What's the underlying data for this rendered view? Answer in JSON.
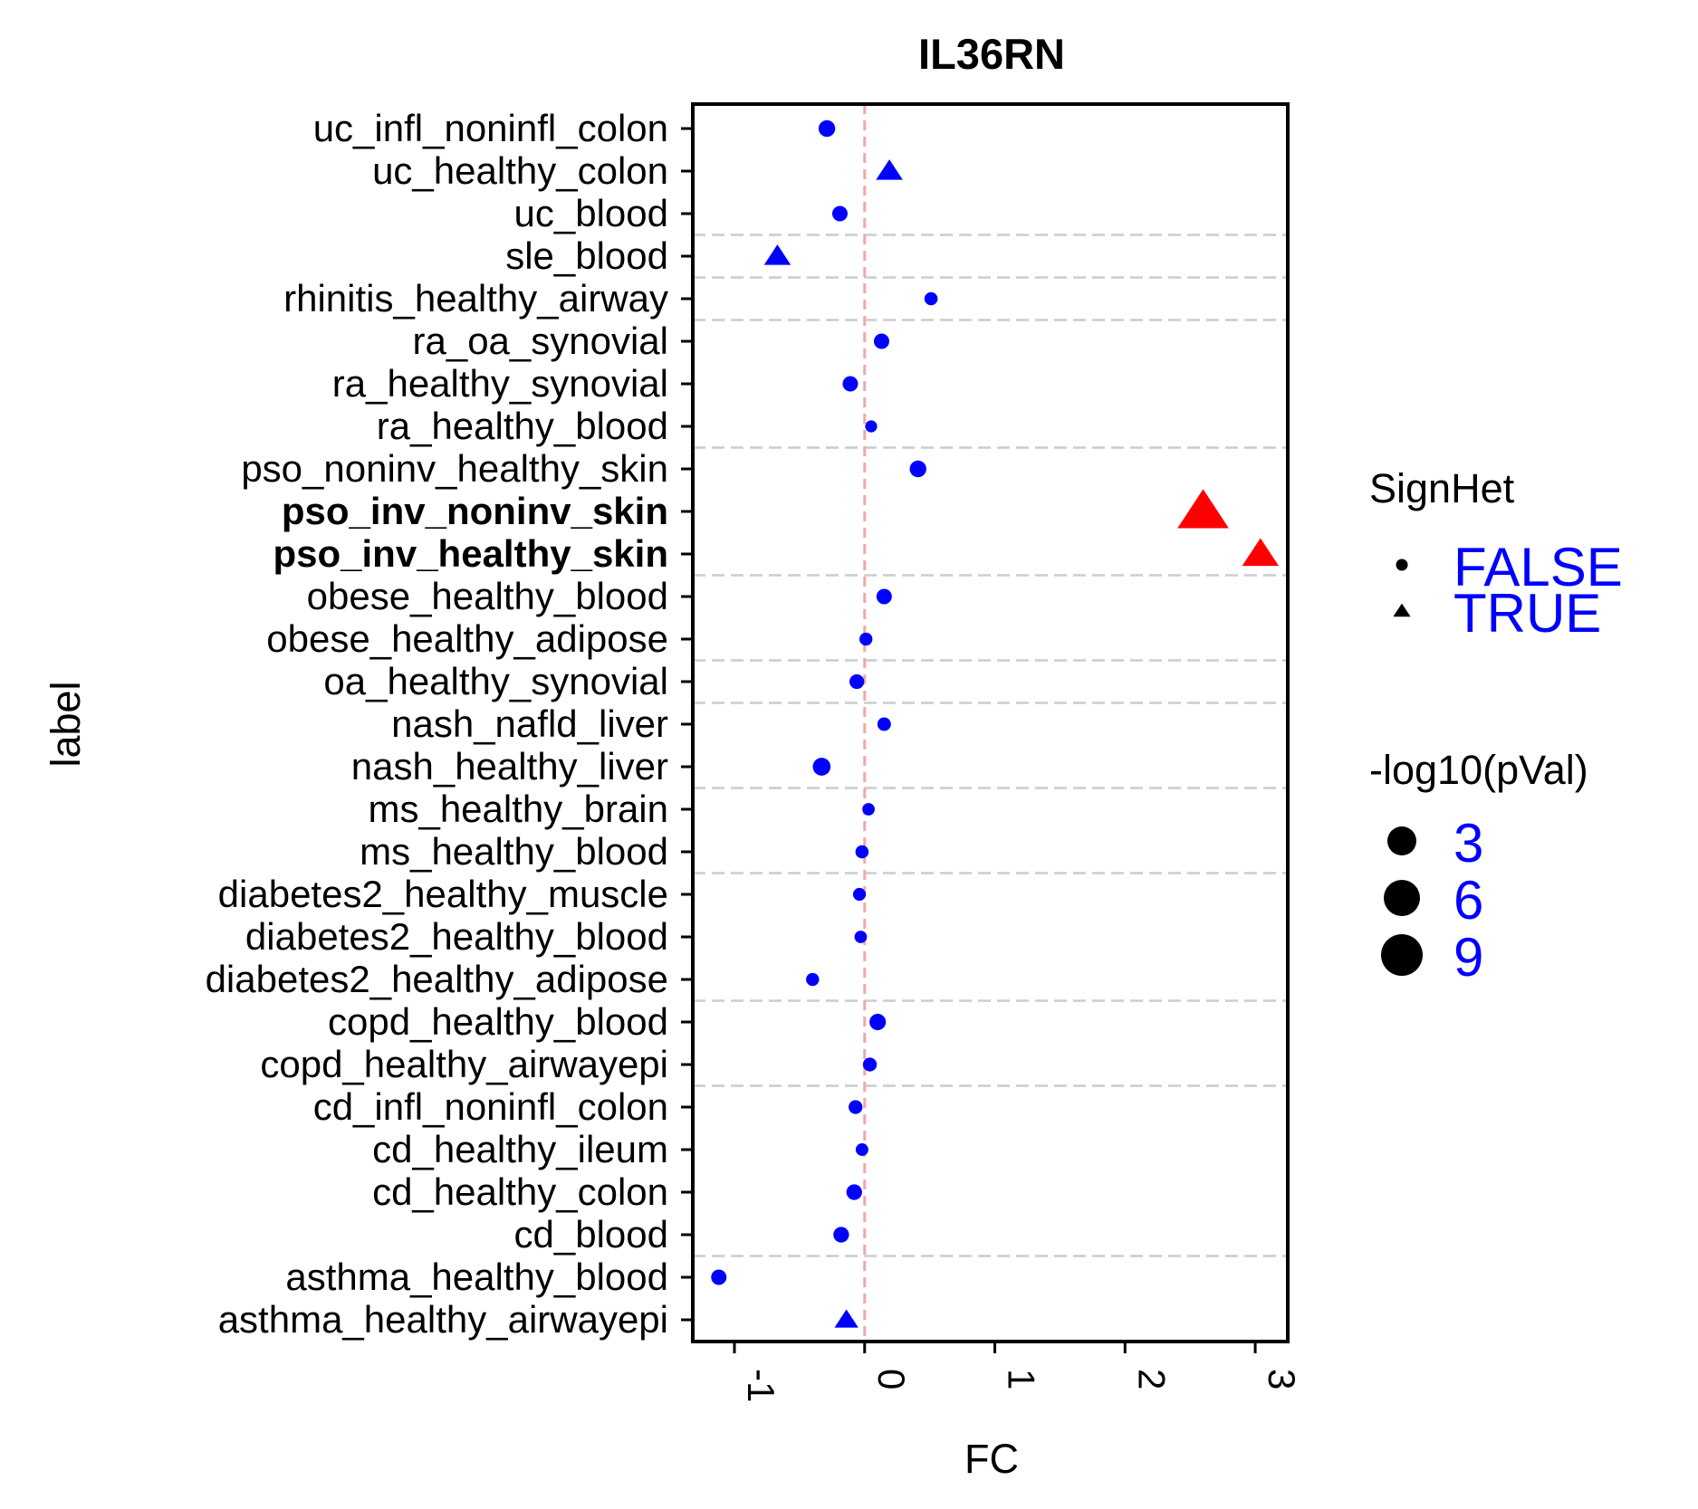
{
  "chart_data": {
    "type": "scatter",
    "title": "IL36RN",
    "xlabel": "FC",
    "ylabel": "label",
    "xlim": [
      -1.32,
      3.25
    ],
    "x_ticks": [
      -1,
      0,
      1,
      2,
      3
    ],
    "x_tick_labels": [
      "-1",
      "0",
      "1",
      "2",
      "3"
    ],
    "reference_line_x": 0,
    "colors": {
      "not_significant": "#0000ff",
      "significant": "#ff0000",
      "reference_line": "#f4a6a6",
      "separator": "#cccccc"
    },
    "categories": [
      "uc_infl_noninfl_colon",
      "uc_healthy_colon",
      "uc_blood",
      "sle_blood",
      "rhinitis_healthy_airway",
      "ra_oa_synovial",
      "ra_healthy_synovial",
      "ra_healthy_blood",
      "pso_noninv_healthy_skin",
      "pso_inv_noninv_skin",
      "pso_inv_healthy_skin",
      "obese_healthy_blood",
      "obese_healthy_adipose",
      "oa_healthy_synovial",
      "nash_nafld_liver",
      "nash_healthy_liver",
      "ms_healthy_brain",
      "ms_healthy_blood",
      "diabetes2_healthy_muscle",
      "diabetes2_healthy_blood",
      "diabetes2_healthy_adipose",
      "copd_healthy_blood",
      "copd_healthy_airwayepi",
      "cd_infl_noninfl_colon",
      "cd_healthy_ileum",
      "cd_healthy_colon",
      "cd_blood",
      "asthma_healthy_blood",
      "asthma_healthy_airwayepi"
    ],
    "bold_categories": [
      "pso_inv_noninv_skin",
      "pso_inv_healthy_skin"
    ],
    "group_separators_after": [
      "uc_blood",
      "sle_blood",
      "rhinitis_healthy_airway",
      "ra_healthy_blood",
      "pso_inv_healthy_skin",
      "obese_healthy_adipose",
      "oa_healthy_synovial",
      "nash_healthy_liver",
      "ms_healthy_blood",
      "diabetes2_healthy_adipose",
      "copd_healthy_airwayepi",
      "cd_blood"
    ],
    "points": [
      {
        "label": "uc_infl_noninfl_colon",
        "fc": -0.29,
        "neglog10p": 4.0,
        "signhet": false,
        "significant": false
      },
      {
        "label": "uc_healthy_colon",
        "fc": 0.19,
        "neglog10p": 4.5,
        "signhet": true,
        "significant": false
      },
      {
        "label": "uc_blood",
        "fc": -0.19,
        "neglog10p": 3.0,
        "signhet": false,
        "significant": false
      },
      {
        "label": "sle_blood",
        "fc": -0.67,
        "neglog10p": 4.5,
        "signhet": true,
        "significant": false
      },
      {
        "label": "rhinitis_healthy_airway",
        "fc": 0.51,
        "neglog10p": 1.6,
        "signhet": false,
        "significant": false
      },
      {
        "label": "ra_oa_synovial",
        "fc": 0.13,
        "neglog10p": 3.0,
        "signhet": false,
        "significant": false
      },
      {
        "label": "ra_healthy_synovial",
        "fc": -0.11,
        "neglog10p": 3.0,
        "signhet": false,
        "significant": false
      },
      {
        "label": "ra_healthy_blood",
        "fc": 0.05,
        "neglog10p": 1.0,
        "signhet": false,
        "significant": false
      },
      {
        "label": "pso_noninv_healthy_skin",
        "fc": 0.41,
        "neglog10p": 4.0,
        "signhet": false,
        "significant": false
      },
      {
        "label": "pso_inv_noninv_skin",
        "fc": 2.6,
        "neglog10p": 30.0,
        "signhet": true,
        "significant": true
      },
      {
        "label": "pso_inv_healthy_skin",
        "fc": 3.04,
        "neglog10p": 12.0,
        "signhet": true,
        "significant": true
      },
      {
        "label": "obese_healthy_blood",
        "fc": 0.15,
        "neglog10p": 3.0,
        "signhet": false,
        "significant": false
      },
      {
        "label": "obese_healthy_adipose",
        "fc": 0.01,
        "neglog10p": 1.5,
        "signhet": false,
        "significant": false
      },
      {
        "label": "oa_healthy_synovial",
        "fc": -0.06,
        "neglog10p": 2.5,
        "signhet": false,
        "significant": false
      },
      {
        "label": "nash_nafld_liver",
        "fc": 0.15,
        "neglog10p": 1.8,
        "signhet": false,
        "significant": false
      },
      {
        "label": "nash_healthy_liver",
        "fc": -0.33,
        "neglog10p": 5.0,
        "signhet": false,
        "significant": false
      },
      {
        "label": "ms_healthy_brain",
        "fc": 0.03,
        "neglog10p": 1.2,
        "signhet": false,
        "significant": false
      },
      {
        "label": "ms_healthy_blood",
        "fc": -0.02,
        "neglog10p": 1.6,
        "signhet": false,
        "significant": false
      },
      {
        "label": "diabetes2_healthy_muscle",
        "fc": -0.04,
        "neglog10p": 1.4,
        "signhet": false,
        "significant": false
      },
      {
        "label": "diabetes2_healthy_blood",
        "fc": -0.03,
        "neglog10p": 1.2,
        "signhet": false,
        "significant": false
      },
      {
        "label": "diabetes2_healthy_adipose",
        "fc": -0.4,
        "neglog10p": 1.5,
        "signhet": false,
        "significant": false
      },
      {
        "label": "copd_healthy_blood",
        "fc": 0.1,
        "neglog10p": 3.8,
        "signhet": false,
        "significant": false
      },
      {
        "label": "copd_healthy_airwayepi",
        "fc": 0.04,
        "neglog10p": 2.0,
        "signhet": false,
        "significant": false
      },
      {
        "label": "cd_infl_noninfl_colon",
        "fc": -0.07,
        "neglog10p": 2.0,
        "signhet": false,
        "significant": false
      },
      {
        "label": "cd_healthy_ileum",
        "fc": -0.02,
        "neglog10p": 1.3,
        "signhet": false,
        "significant": false
      },
      {
        "label": "cd_healthy_colon",
        "fc": -0.08,
        "neglog10p": 3.2,
        "signhet": false,
        "significant": false
      },
      {
        "label": "cd_blood",
        "fc": -0.18,
        "neglog10p": 3.2,
        "signhet": false,
        "significant": false
      },
      {
        "label": "asthma_healthy_blood",
        "fc": -1.12,
        "neglog10p": 3.0,
        "signhet": false,
        "significant": false
      },
      {
        "label": "asthma_healthy_airwayepi",
        "fc": -0.14,
        "neglog10p": 3.0,
        "signhet": true,
        "significant": false
      }
    ],
    "legend": {
      "placement": "right",
      "shape": {
        "title": "SignHet",
        "items": [
          {
            "label": "FALSE",
            "shape": "circle"
          },
          {
            "label": "TRUE",
            "shape": "triangle"
          }
        ]
      },
      "size": {
        "title": "-log10(pVal)",
        "items": [
          {
            "label": "3",
            "value": 3
          },
          {
            "label": "6",
            "value": 6
          },
          {
            "label": "9",
            "value": 9
          }
        ]
      }
    },
    "grid": false
  }
}
